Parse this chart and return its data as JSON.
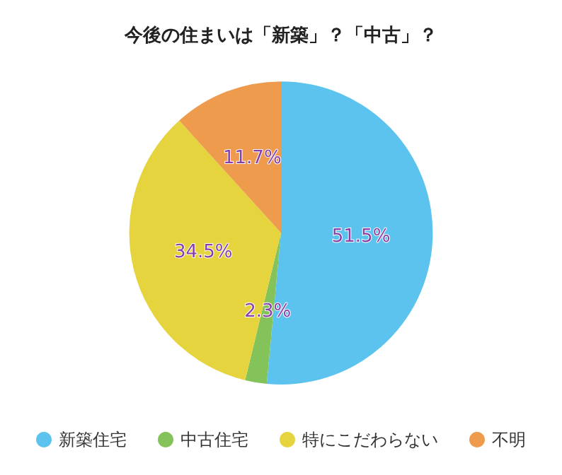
{
  "chart_data": {
    "type": "pie",
    "title": "今後の住まいは「新築」？「中古」？",
    "categories": [
      "新築住宅",
      "中古住宅",
      "特にこだわらない",
      "不明"
    ],
    "values": [
      51.5,
      2.3,
      34.5,
      11.7
    ],
    "colors": [
      "#5bc3ee",
      "#84c25a",
      "#e5d43e",
      "#ee9b4e"
    ],
    "value_labels": [
      "51.5%",
      "2.3%",
      "34.5%",
      "11.7%"
    ],
    "legend": "bottom"
  }
}
